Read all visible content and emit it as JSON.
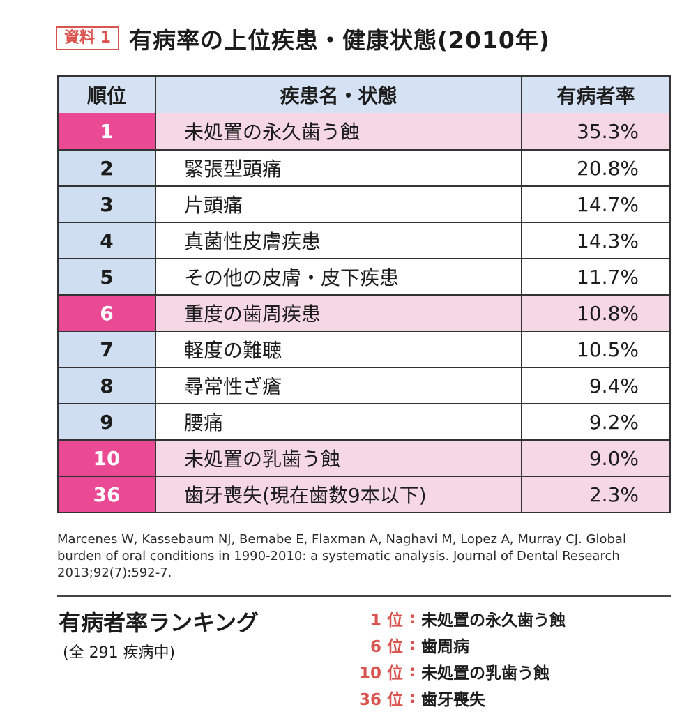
{
  "header": {
    "tag": "資料 1",
    "title": "有病率の上位疾患・健康状態(2010年)"
  },
  "table": {
    "columns": [
      "順位",
      "疾患名・状態",
      "有病者率"
    ],
    "rows": [
      {
        "rank": "1",
        "name": "未処置の永久歯う蝕",
        "rate": "35.3%",
        "highlight": true
      },
      {
        "rank": "2",
        "name": "緊張型頭痛",
        "rate": "20.8%",
        "highlight": false
      },
      {
        "rank": "3",
        "name": "片頭痛",
        "rate": "14.7%",
        "highlight": false
      },
      {
        "rank": "4",
        "name": "真菌性皮膚疾患",
        "rate": "14.3%",
        "highlight": false
      },
      {
        "rank": "5",
        "name": "その他の皮膚・皮下疾患",
        "rate": "11.7%",
        "highlight": false
      },
      {
        "rank": "6",
        "name": "重度の歯周疾患",
        "rate": "10.8%",
        "highlight": true
      },
      {
        "rank": "7",
        "name": "軽度の難聴",
        "rate": "10.5%",
        "highlight": false
      },
      {
        "rank": "8",
        "name": "尋常性ざ瘡",
        "rate": "9.4%",
        "highlight": false
      },
      {
        "rank": "9",
        "name": "腰痛",
        "rate": "9.2%",
        "highlight": false
      },
      {
        "rank": "10",
        "name": "未処置の乳歯う蝕",
        "rate": "9.0%",
        "highlight": true
      },
      {
        "rank": "36",
        "name": "歯牙喪失(現在歯数9本以下)",
        "rate": "2.3%",
        "highlight": true
      }
    ]
  },
  "citation": "Marcenes W, Kassebaum NJ, Bernabe E, Flaxman A, Naghavi M, Lopez A, Murray CJ. Global burden of oral conditions in 1990-2010: a systematic analysis. Journal of Dental Research 2013;92(7):592-7.",
  "ranking": {
    "title": "有病者率ランキング",
    "subtitle": "(全 291 疾病中)",
    "items": [
      {
        "pos": "1 位",
        "label": "未処置の永久歯う蝕"
      },
      {
        "pos": "6 位",
        "label": "歯周病"
      },
      {
        "pos": "10 位",
        "label": "未処置の乳歯う蝕"
      },
      {
        "pos": "36 位",
        "label": "歯牙喪失"
      }
    ]
  },
  "colors": {
    "highlight_rank": "#e94a93",
    "highlight_row": "#f6d7e6",
    "normal_rank": "#cfdff1",
    "header_row": "#d5e2f3",
    "accent_red": "#d9534f"
  }
}
